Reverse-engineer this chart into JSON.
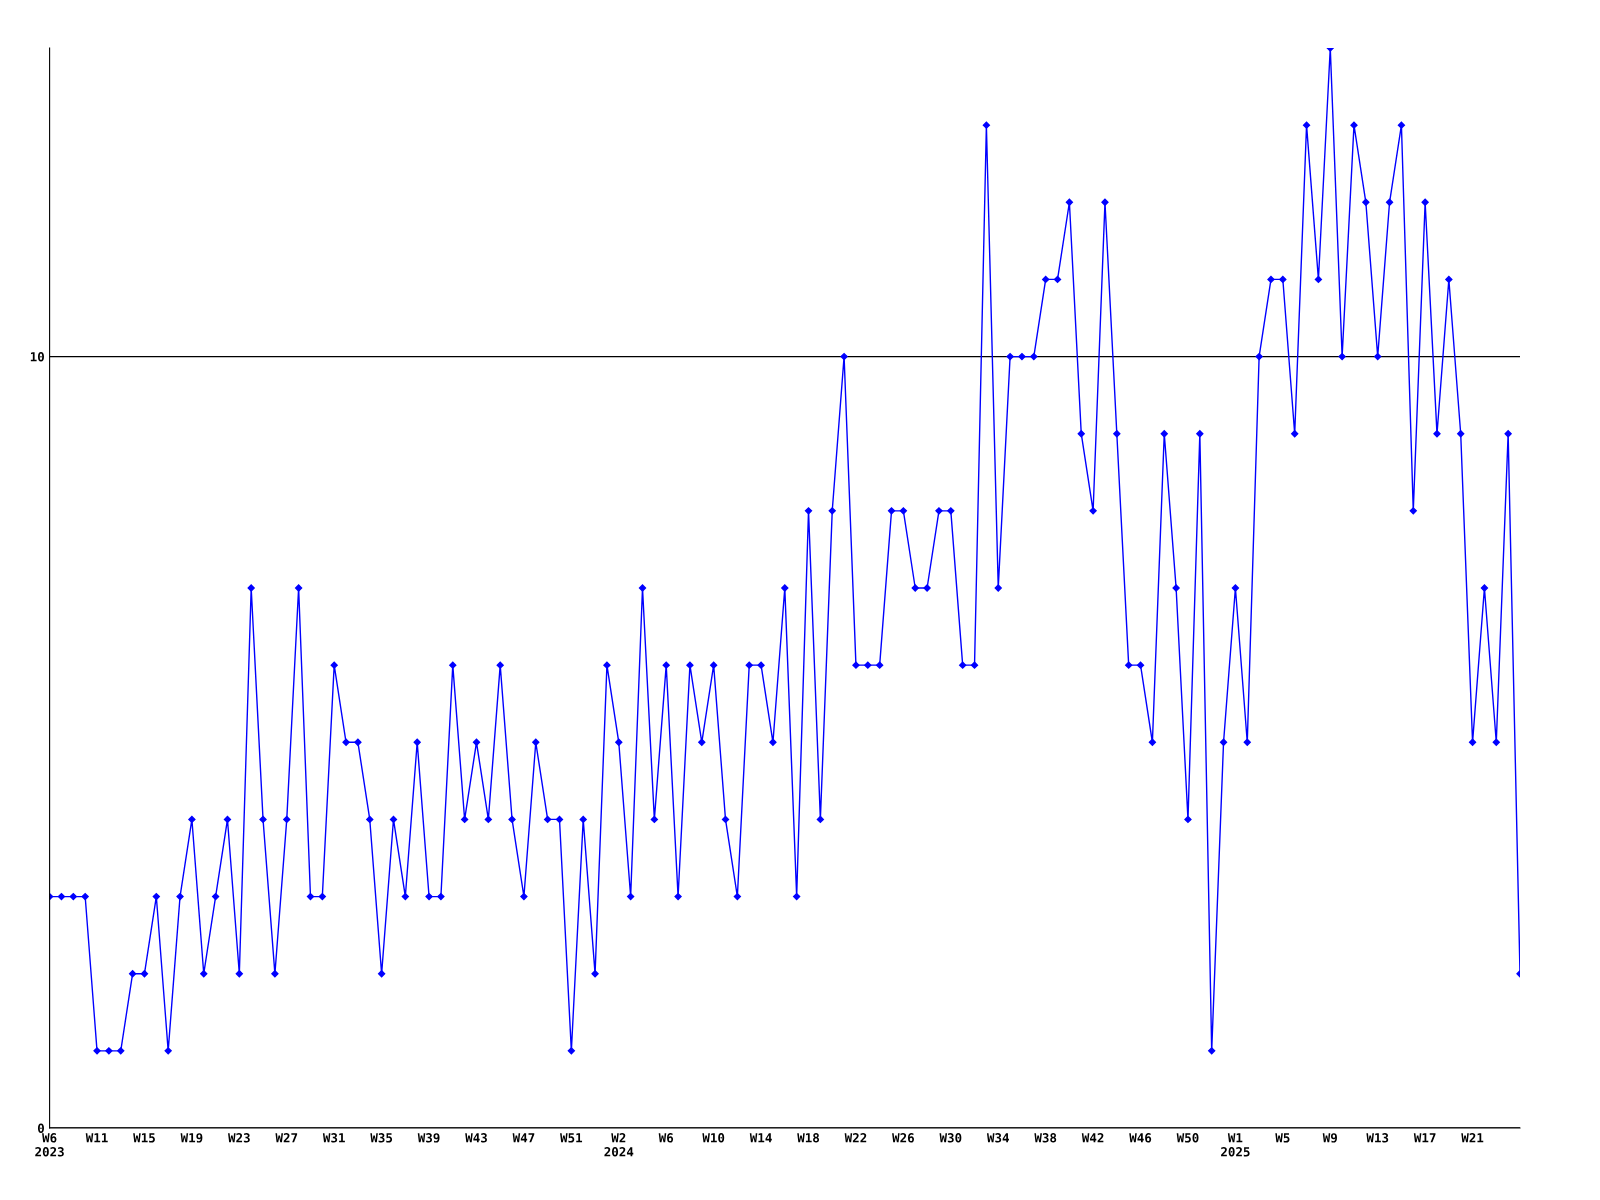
{
  "chart_data": {
    "type": "line",
    "categories": [
      "W6\n2023",
      null,
      null,
      null,
      "W11",
      null,
      null,
      null,
      "W15",
      null,
      null,
      null,
      "W19",
      null,
      null,
      null,
      "W23",
      null,
      null,
      null,
      "W27",
      null,
      null,
      null,
      "W31",
      null,
      null,
      null,
      "W35",
      null,
      null,
      null,
      "W39",
      null,
      null,
      null,
      "W43",
      null,
      null,
      null,
      "W47",
      null,
      null,
      null,
      "W51",
      null,
      null,
      null,
      "W2\n2024",
      null,
      null,
      null,
      "W6",
      null,
      null,
      null,
      "W10",
      null,
      null,
      null,
      "W14",
      null,
      null,
      null,
      "W18",
      null,
      null,
      null,
      "W22",
      null,
      null,
      null,
      "W26",
      null,
      null,
      null,
      "W30",
      null,
      null,
      null,
      "W34",
      null,
      null,
      null,
      "W38",
      null,
      null,
      null,
      "W42",
      null,
      null,
      null,
      "W46",
      null,
      null,
      null,
      "W50",
      null,
      null,
      null,
      "W1\n2025",
      null,
      null,
      null,
      "W5",
      null,
      null,
      null,
      "W9",
      null,
      null,
      null,
      "W13",
      null,
      null,
      null,
      "W17",
      null,
      null,
      null,
      "W21",
      null,
      null,
      null,
      null
    ],
    "series": [
      {
        "color": "#0000ff",
        "values": [
          3,
          3,
          3,
          3,
          1,
          1,
          1,
          2,
          2,
          3,
          1,
          3,
          4,
          2,
          3,
          4,
          2,
          7,
          4,
          2,
          4,
          7,
          3,
          3,
          6,
          5,
          5,
          4,
          2,
          4,
          3,
          5,
          3,
          3,
          6,
          4,
          5,
          4,
          6,
          4,
          3,
          5,
          4,
          4,
          1,
          4,
          2,
          6,
          5,
          3,
          7,
          4,
          6,
          3,
          6,
          5,
          6,
          4,
          3,
          6,
          6,
          5,
          7,
          3,
          8,
          4,
          8,
          10,
          6,
          6,
          6,
          8,
          8,
          7,
          7,
          8,
          8,
          6,
          6,
          13,
          7,
          10,
          10,
          10,
          11,
          11,
          12,
          9,
          8,
          12,
          9,
          6,
          6,
          5,
          9,
          7,
          4,
          9,
          1,
          5,
          7,
          5,
          10,
          11,
          11,
          9,
          13,
          11,
          14,
          10,
          13,
          12,
          10,
          12,
          13,
          8,
          12,
          9,
          11,
          9,
          5,
          7,
          5,
          9,
          2
        ]
      }
    ],
    "ylim": [
      0,
      14
    ],
    "yticks": [
      0,
      10
    ],
    "grid": "y",
    "marker": "diamond",
    "line_style": "solid",
    "legend": false
  }
}
